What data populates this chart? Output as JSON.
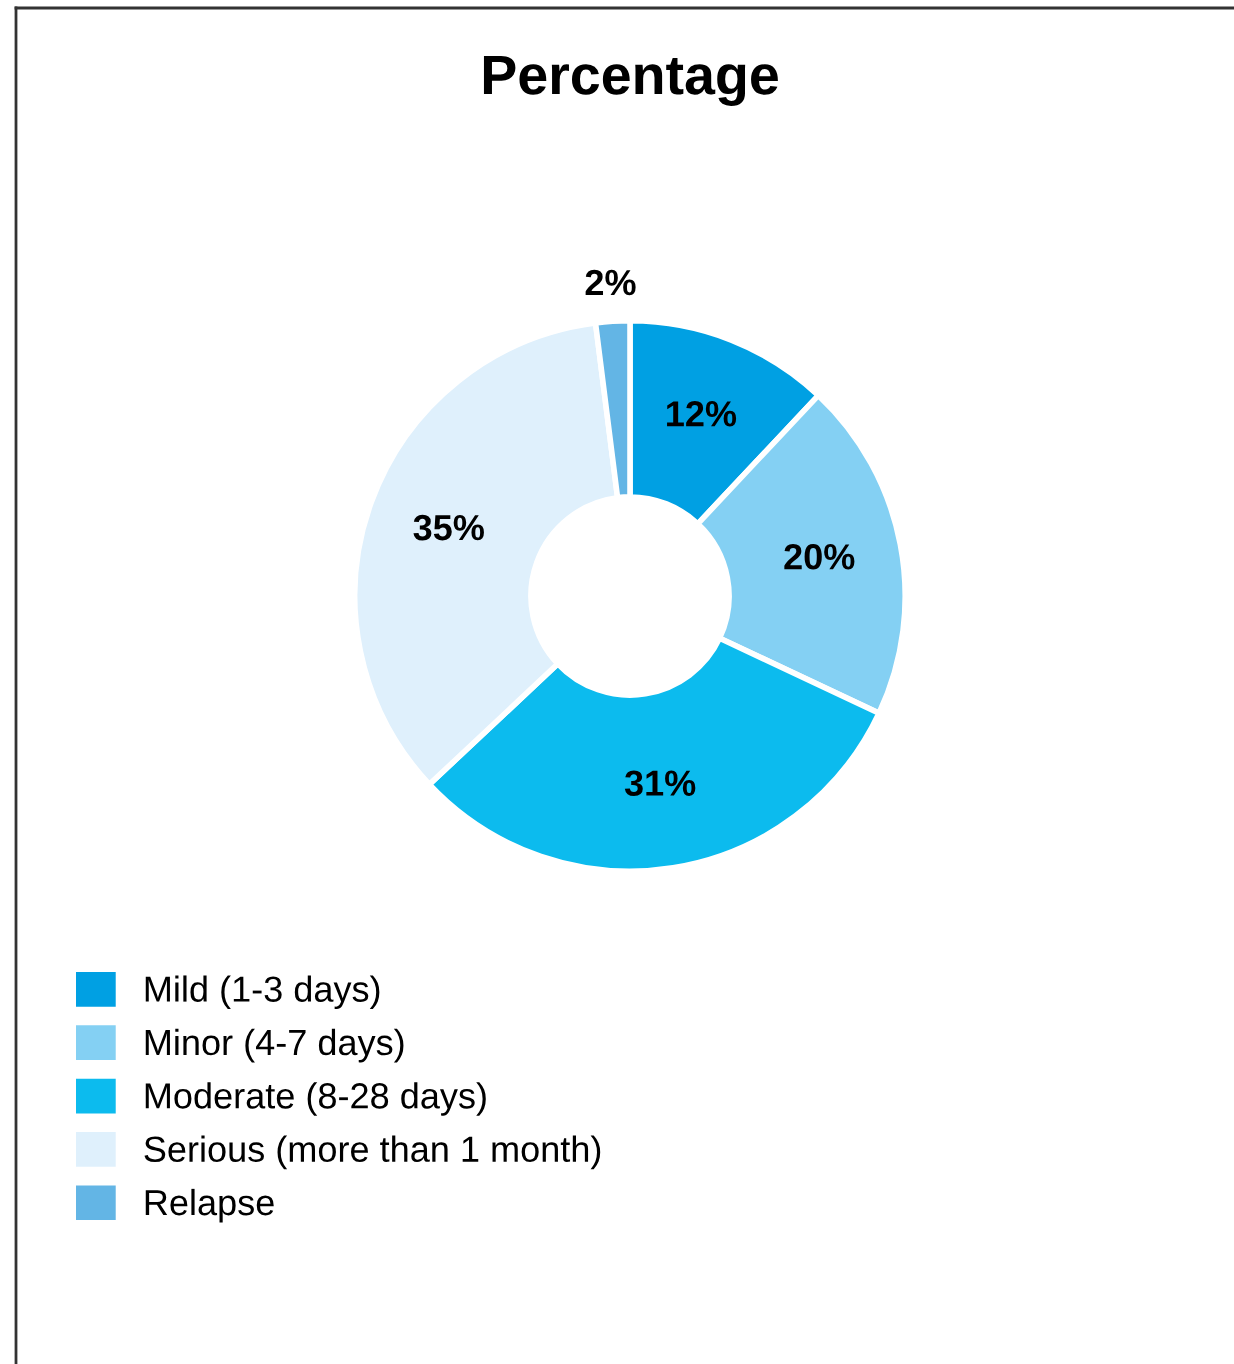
{
  "chart_data": {
    "type": "donut",
    "title": "Percentage",
    "categories": [
      "Mild (1-3 days)",
      "Minor (4-7 days)",
      "Moderate (8-28 days)",
      "Serious (more than 1 month)",
      "Relapse"
    ],
    "values": [
      12,
      20,
      31,
      35,
      2
    ],
    "colors": [
      "#00a0e3",
      "#84d0f3",
      "#0cbbee",
      "#dff0fc",
      "#63b5e5"
    ],
    "value_labels": [
      "12%",
      "20%",
      "31%",
      "35%",
      "2%"
    ],
    "legend": "bottom left"
  }
}
